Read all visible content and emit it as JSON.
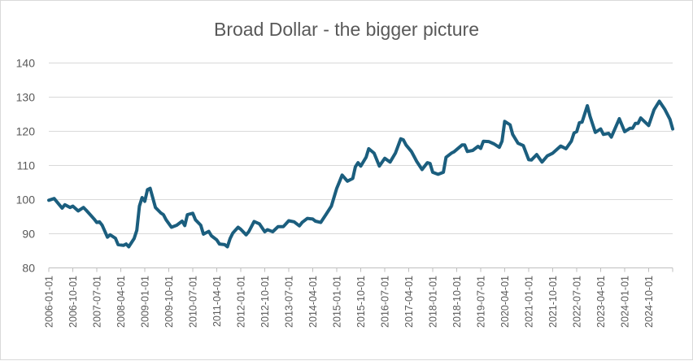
{
  "chart_data": {
    "type": "line",
    "title": "Broad Dollar - the bigger picture",
    "xlabel": "",
    "ylabel": "",
    "ylim": [
      80,
      140
    ],
    "yticks": [
      80,
      90,
      100,
      110,
      120,
      130,
      140
    ],
    "xlim": [
      "2006-01-01",
      "2025-07-01"
    ],
    "xtick_labels": [
      "2006-01-01",
      "2006-10-01",
      "2007-07-01",
      "2008-04-01",
      "2009-01-01",
      "2009-10-01",
      "2010-07-01",
      "2011-04-01",
      "2012-01-01",
      "2012-10-01",
      "2013-07-01",
      "2014-04-01",
      "2015-01-01",
      "2015-10-01",
      "2016-07-01",
      "2017-04-01",
      "2018-01-01",
      "2018-10-01",
      "2019-07-01",
      "2020-04-01",
      "2021-01-01",
      "2021-10-01",
      "2022-07-01",
      "2023-04-01",
      "2024-01-01",
      "2024-10-01"
    ],
    "grid": true,
    "legend": "none",
    "line_color": "#1b5e7e",
    "series": [
      {
        "x": [
          "2006-01",
          "2006-03",
          "2006-06",
          "2006-07",
          "2006-09",
          "2006-10",
          "2006-12",
          "2007-02",
          "2007-03",
          "2007-05",
          "2007-06",
          "2007-07",
          "2007-08",
          "2007-09",
          "2007-11",
          "2007-12",
          "2008-02",
          "2008-03",
          "2008-05",
          "2008-06",
          "2008-07",
          "2008-09",
          "2008-10",
          "2008-11",
          "2008-12",
          "2009-01",
          "2009-02",
          "2009-03",
          "2009-05",
          "2009-07",
          "2009-08",
          "2009-09",
          "2009-11",
          "2010-01",
          "2010-03",
          "2010-04",
          "2010-05",
          "2010-07",
          "2010-08",
          "2010-10",
          "2010-11",
          "2011-01",
          "2011-02",
          "2011-04",
          "2011-05",
          "2011-07",
          "2011-08",
          "2011-09",
          "2011-10",
          "2011-12",
          "2012-01",
          "2012-03",
          "2012-04",
          "2012-06",
          "2012-08",
          "2012-10",
          "2012-11",
          "2013-01",
          "2013-03",
          "2013-05",
          "2013-07",
          "2013-09",
          "2013-11",
          "2013-12",
          "2014-02",
          "2014-04",
          "2014-05",
          "2014-07",
          "2014-09",
          "2014-11",
          "2015-01",
          "2015-02",
          "2015-03",
          "2015-05",
          "2015-07",
          "2015-08",
          "2015-09",
          "2015-10",
          "2015-12",
          "2016-01",
          "2016-03",
          "2016-05",
          "2016-07",
          "2016-09",
          "2016-11",
          "2017-01",
          "2017-02",
          "2017-03",
          "2017-05",
          "2017-07",
          "2017-09",
          "2017-11",
          "2017-12",
          "2018-01",
          "2018-03",
          "2018-05",
          "2018-06",
          "2018-08",
          "2018-09",
          "2018-12",
          "2019-01",
          "2019-02",
          "2019-04",
          "2019-06",
          "2019-07",
          "2019-08",
          "2019-10",
          "2019-12",
          "2020-02",
          "2020-03",
          "2020-04",
          "2020-06",
          "2020-07",
          "2020-09",
          "2020-11",
          "2021-01",
          "2021-02",
          "2021-04",
          "2021-06",
          "2021-08",
          "2021-10",
          "2022-01",
          "2022-03",
          "2022-05",
          "2022-06",
          "2022-07",
          "2022-08",
          "2022-09",
          "2022-11",
          "2022-12",
          "2023-02",
          "2023-04",
          "2023-05",
          "2023-07",
          "2023-08",
          "2023-11",
          "2024-01",
          "2024-03",
          "2024-04",
          "2024-05",
          "2024-06",
          "2024-07",
          "2024-10",
          "2024-12",
          "2025-02",
          "2025-04",
          "2025-06",
          "2025-07"
        ],
        "y": [
          99.8,
          100.3,
          97.5,
          98.5,
          97.7,
          98.1,
          96.7,
          97.7,
          96.9,
          95.2,
          94.3,
          93.3,
          93.5,
          92.5,
          89.0,
          89.7,
          88.7,
          86.8,
          86.6,
          87.0,
          86.2,
          88.6,
          91.0,
          98.1,
          100.6,
          99.5,
          102.9,
          103.3,
          97.7,
          96.1,
          95.6,
          94.1,
          91.9,
          92.5,
          93.7,
          92.4,
          95.6,
          96.0,
          94.1,
          92.5,
          89.9,
          90.7,
          89.4,
          88.2,
          87.0,
          86.8,
          86.2,
          88.6,
          90.2,
          91.9,
          91.3,
          89.7,
          90.6,
          93.6,
          92.9,
          90.6,
          91.2,
          90.6,
          92.1,
          92.1,
          93.8,
          93.5,
          92.3,
          93.3,
          94.5,
          94.3,
          93.7,
          93.3,
          95.7,
          98.1,
          103.3,
          105.2,
          107.2,
          105.4,
          106.2,
          109.6,
          110.8,
          109.8,
          112.4,
          114.9,
          113.6,
          109.8,
          112.1,
          111.0,
          113.6,
          117.8,
          117.5,
          116.0,
          114.1,
          111.2,
          108.8,
          110.8,
          110.6,
          108.0,
          107.4,
          108.0,
          112.4,
          113.6,
          114.0,
          116.0,
          116.0,
          114.1,
          114.4,
          115.6,
          115.0,
          117.1,
          117.0,
          116.3,
          115.3,
          117.1,
          122.9,
          121.9,
          119.1,
          116.5,
          115.8,
          111.7,
          111.6,
          113.2,
          111.0,
          112.8,
          113.6,
          115.7,
          114.9,
          117.1,
          119.5,
          119.9,
          122.5,
          122.7,
          127.5,
          124.4,
          119.7,
          120.7,
          119.1,
          119.4,
          118.3,
          123.7,
          119.9,
          120.9,
          120.9,
          122.3,
          122.3,
          123.9,
          121.7,
          126.3,
          128.8,
          126.5,
          123.5,
          120.7
        ]
      }
    ]
  }
}
